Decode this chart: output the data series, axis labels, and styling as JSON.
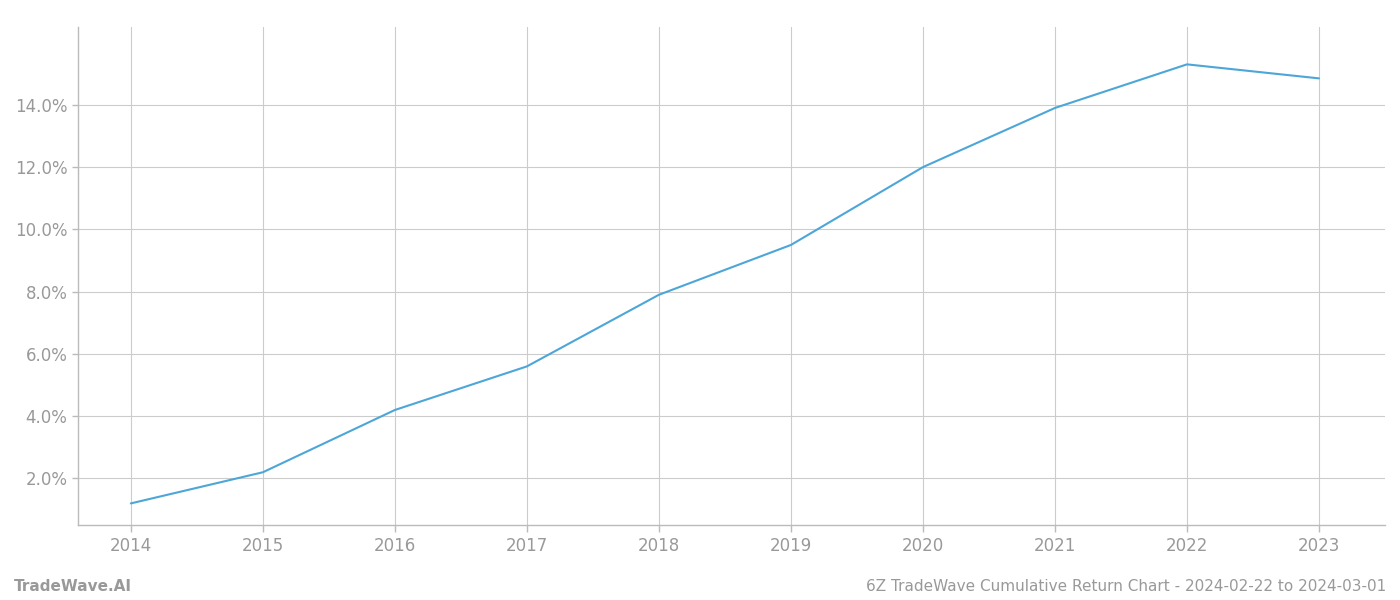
{
  "title": "6Z TradeWave Cumulative Return Chart - 2024-02-22 to 2024-03-01",
  "watermark": "TradeWave.AI",
  "line_color": "#4da6d8",
  "background_color": "#ffffff",
  "grid_color": "#cccccc",
  "x_values": [
    2014,
    2015,
    2016,
    2017,
    2018,
    2019,
    2020,
    2021,
    2022,
    2023
  ],
  "y_values": [
    1.2,
    2.2,
    4.2,
    5.6,
    7.9,
    9.5,
    12.0,
    13.9,
    15.3,
    14.85
  ],
  "xlim": [
    2013.6,
    2023.5
  ],
  "ylim": [
    0.5,
    16.5
  ],
  "yticks": [
    2.0,
    4.0,
    6.0,
    8.0,
    10.0,
    12.0,
    14.0
  ],
  "xticks": [
    2014,
    2015,
    2016,
    2017,
    2018,
    2019,
    2020,
    2021,
    2022,
    2023
  ],
  "line_width": 1.5,
  "tick_label_color": "#999999",
  "tick_label_fontsize": 12,
  "footer_fontsize": 11,
  "footer_color": "#999999",
  "spine_color": "#bbbbbb"
}
